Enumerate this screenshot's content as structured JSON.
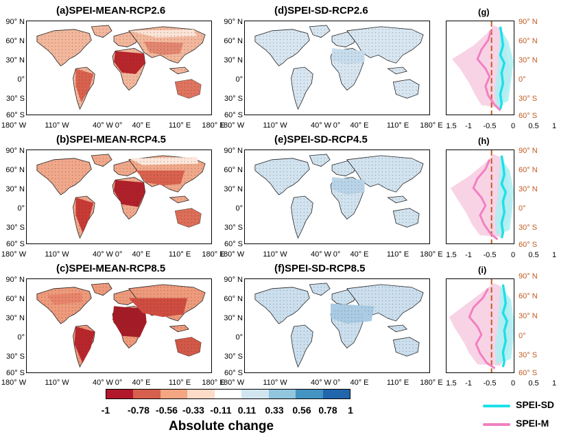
{
  "panels": {
    "a": "(a)SPEI-MEAN-RCP2.6",
    "b": "(b)SPEI-MEAN-RCP4.5",
    "c": "(c)SPEI-MEAN-RCP8.5",
    "d": "(d)SPEI-SD-RCP2.6",
    "e": "(e)SPEI-SD-RCP4.5",
    "f": "(f)SPEI-SD-RCP8.5",
    "g": "(g)",
    "h": "(h)",
    "i": "(i)"
  },
  "lat_labels": [
    "90° N",
    "60° N",
    "30° N",
    "0°",
    "30° S",
    "60° S"
  ],
  "lon_labels": [
    "180° W",
    "110° W",
    "40° W",
    "0°",
    "40° E",
    "110° E",
    "180° E"
  ],
  "profile_x_ticks": [
    "1.5",
    "-1",
    "-0.5",
    "0",
    "0.5",
    "1"
  ],
  "profile_lat_labels": [
    "90° N",
    "60° N",
    "30° N",
    "0°",
    "30° S",
    "60° S"
  ],
  "colorbar": {
    "ticks": [
      "-1",
      "-0.78",
      "-0.56",
      "-0.33",
      "-0.11",
      "0.11",
      "0.33",
      "0.56",
      "0.78",
      "1"
    ],
    "colors": [
      "#b2182b",
      "#d6604d",
      "#f4a582",
      "#fddbc7",
      "#ffffff",
      "#d1e5f0",
      "#92c5de",
      "#4393c3",
      "#2166ac"
    ],
    "label": "Absolute change"
  },
  "legend": {
    "sd_label": "SPEI-SD",
    "m_label": "SPEI-M",
    "sd_color": "#1de0e8",
    "m_color": "#f27fbf"
  },
  "colors": {
    "dry_strong": "#b8262b",
    "dry_mid": "#e0745e",
    "dry_light": "#f6c5ad",
    "wet_light": "#dbe8f2",
    "wet_mid": "#a9cbe3",
    "zero_line": "#c0581e"
  }
}
